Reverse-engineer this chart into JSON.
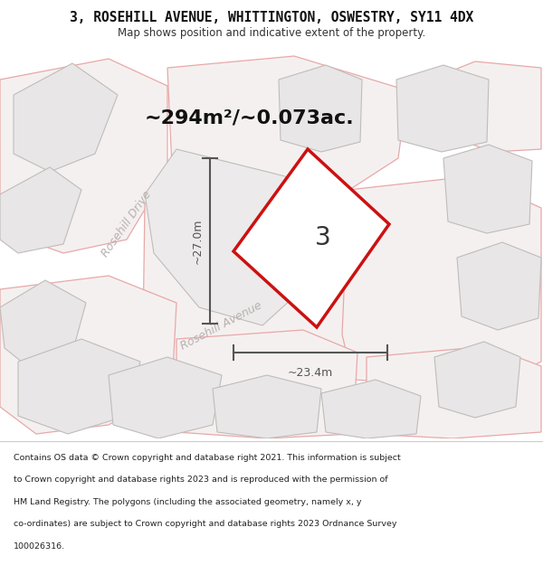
{
  "title_line1": "3, ROSEHILL AVENUE, WHITTINGTON, OSWESTRY, SY11 4DX",
  "title_line2": "Map shows position and indicative extent of the property.",
  "area_label": "~294m²/~0.073ac.",
  "plot_number": "3",
  "dim_height": "~27.0m",
  "dim_width": "~23.4m",
  "street_label1": "Rosehill Drive",
  "street_label2": "Rosehill Avenue",
  "footer_lines": [
    "Contains OS data © Crown copyright and database right 2021. This information is subject",
    "to Crown copyright and database rights 2023 and is reproduced with the permission of",
    "HM Land Registry. The polygons (including the associated geometry, namely x, y",
    "co-ordinates) are subject to Crown copyright and database rights 2023 Ordnance Survey",
    "100026316."
  ],
  "map_bg": "#f2f0f0",
  "title_bg": "#ffffff",
  "footer_bg": "#ffffff",
  "red_color": "#cc1111",
  "gray_fill": "#e8e6e6",
  "gray_edge": "#c0bcbc",
  "pink_edge": "#e8a8a8",
  "pink_fill": "#f5f0f0",
  "dim_color": "#555555",
  "street_text_color": "#b8b0b0",
  "title_color": "#111111",
  "note_color": "#333333"
}
